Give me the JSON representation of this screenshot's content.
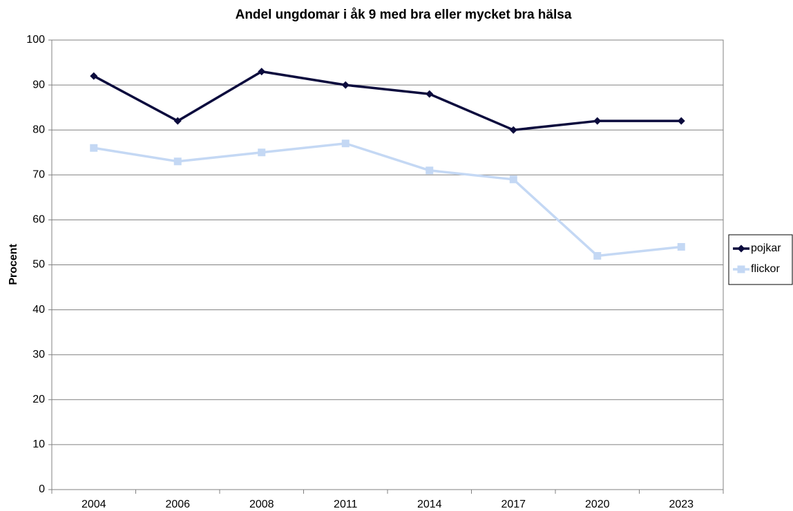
{
  "chart_data": {
    "type": "line",
    "title": "Andel ungdomar i åk 9 med bra eller mycket bra hälsa",
    "y_label": "Procent",
    "categories": [
      "2004",
      "2006",
      "2008",
      "2011",
      "2014",
      "2017",
      "2020",
      "2023"
    ],
    "series": [
      {
        "name": "pojkar",
        "color": "#0b0b3d",
        "marker": "diamond",
        "values": [
          92,
          82,
          93,
          90,
          88,
          80,
          82,
          82
        ]
      },
      {
        "name": "flickor",
        "color": "#c4d8f4",
        "marker": "square",
        "values": [
          76,
          73,
          75,
          77,
          71,
          69,
          52,
          54
        ]
      }
    ],
    "ylim": [
      0,
      100
    ],
    "yticks": [
      0,
      10,
      20,
      30,
      40,
      50,
      60,
      70,
      80,
      90,
      100
    ],
    "grid": true,
    "legend": "right"
  }
}
